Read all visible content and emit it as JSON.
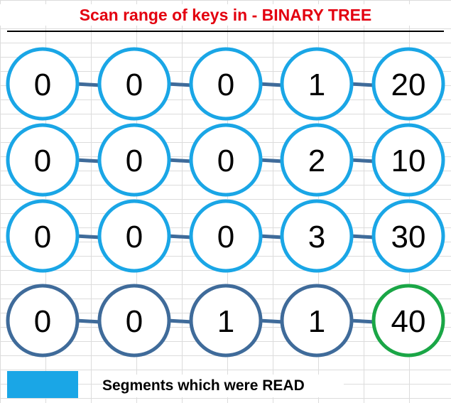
{
  "title": "Scan range of keys in - BINARY TREE",
  "colors": {
    "title": "#e3000f",
    "read": "#1aa6e6",
    "unread": "#3f6b9a",
    "match": "#1aa646"
  },
  "rows": [
    {
      "keys": [
        "0",
        "0",
        "0",
        "1",
        "20"
      ],
      "status": [
        "read",
        "read",
        "read",
        "read",
        "read"
      ]
    },
    {
      "keys": [
        "0",
        "0",
        "0",
        "2",
        "10"
      ],
      "status": [
        "read",
        "read",
        "read",
        "read",
        "read"
      ]
    },
    {
      "keys": [
        "0",
        "0",
        "0",
        "3",
        "30"
      ],
      "status": [
        "read",
        "read",
        "read",
        "read",
        "read"
      ]
    },
    {
      "keys": [
        "0",
        "0",
        "1",
        "1",
        "40"
      ],
      "status": [
        "unread",
        "unread",
        "unread",
        "unread",
        "match"
      ]
    }
  ],
  "legend": {
    "label": "Segments which were READ",
    "swatch_color": "#1aa6e6"
  }
}
